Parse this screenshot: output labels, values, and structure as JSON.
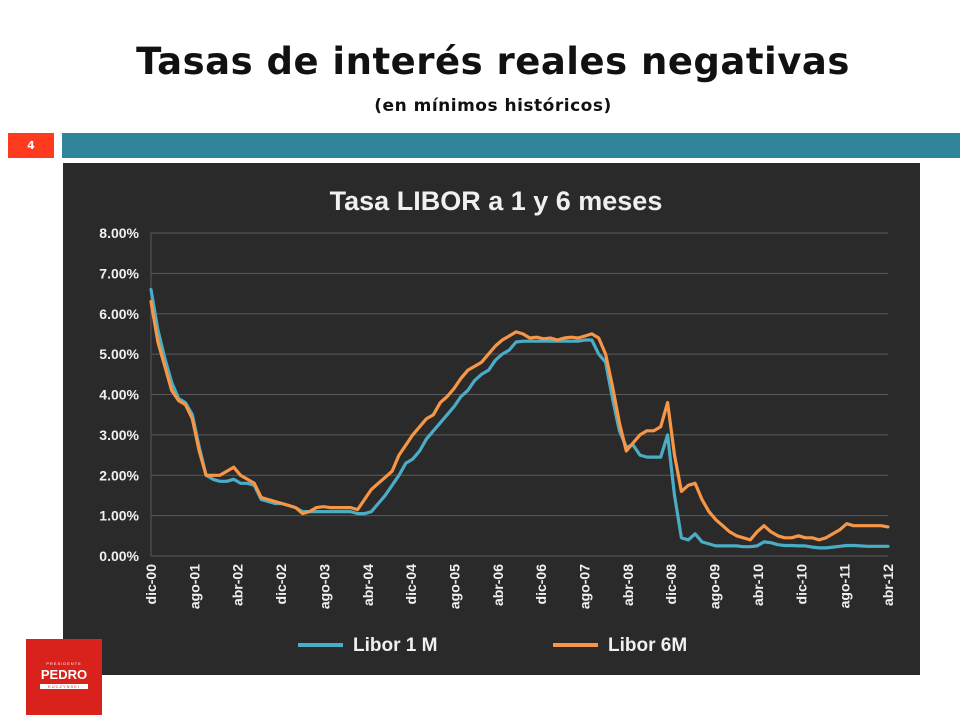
{
  "slide": {
    "title": "Tasas de interés reales negativas",
    "subtitle": "(en mínimos históricos)",
    "page_number": "4"
  },
  "logo": {
    "top_text": "PRESIDENTE",
    "name": "PEDRO",
    "bottom_text": "KUCZYNSKI"
  },
  "colors": {
    "accent_bar": "#31859b",
    "badge": "#ff3b1f",
    "libor_1m": "#4bacc6",
    "libor_6m": "#f79646",
    "plot_bg": "#2a2a2a",
    "gridline": "#5a5a5a"
  },
  "chart_data": {
    "type": "line",
    "title": "Tasa LIBOR a 1 y 6 meses",
    "xlabel": "",
    "ylabel": "",
    "ylim": [
      0,
      8
    ],
    "y_ticks": [
      "0.00%",
      "1.00%",
      "2.00%",
      "3.00%",
      "4.00%",
      "5.00%",
      "6.00%",
      "7.00%",
      "8.00%"
    ],
    "x_tick_labels": [
      "dic-00",
      "ago-01",
      "abr-02",
      "dic-02",
      "ago-03",
      "abr-04",
      "dic-04",
      "ago-05",
      "abr-06",
      "dic-06",
      "ago-07",
      "abr-08",
      "dic-08",
      "ago-09",
      "abr-10",
      "dic-10",
      "ago-11",
      "abr-12"
    ],
    "grid": true,
    "legend_position": "bottom",
    "series": [
      {
        "name": "Libor 1 M",
        "color": "#4bacc6",
        "values": [
          [
            0,
            6.6
          ],
          [
            1,
            5.6
          ],
          [
            2,
            4.9
          ],
          [
            3,
            4.3
          ],
          [
            4,
            3.9
          ],
          [
            5,
            3.8
          ],
          [
            6,
            3.5
          ],
          [
            7,
            2.7
          ],
          [
            8,
            2.0
          ],
          [
            9,
            1.9
          ],
          [
            10,
            1.85
          ],
          [
            11,
            1.85
          ],
          [
            12,
            1.9
          ],
          [
            13,
            1.8
          ],
          [
            14,
            1.8
          ],
          [
            15,
            1.75
          ],
          [
            16,
            1.4
          ],
          [
            17,
            1.35
          ],
          [
            18,
            1.3
          ],
          [
            19,
            1.3
          ],
          [
            20,
            1.25
          ],
          [
            21,
            1.2
          ],
          [
            22,
            1.1
          ],
          [
            23,
            1.1
          ],
          [
            24,
            1.1
          ],
          [
            25,
            1.1
          ],
          [
            26,
            1.1
          ],
          [
            27,
            1.1
          ],
          [
            28,
            1.1
          ],
          [
            29,
            1.1
          ],
          [
            30,
            1.05
          ],
          [
            31,
            1.05
          ],
          [
            32,
            1.1
          ],
          [
            33,
            1.3
          ],
          [
            34,
            1.5
          ],
          [
            35,
            1.75
          ],
          [
            36,
            2.0
          ],
          [
            37,
            2.3
          ],
          [
            38,
            2.4
          ],
          [
            39,
            2.6
          ],
          [
            40,
            2.9
          ],
          [
            41,
            3.1
          ],
          [
            42,
            3.3
          ],
          [
            43,
            3.5
          ],
          [
            44,
            3.7
          ],
          [
            45,
            3.95
          ],
          [
            46,
            4.1
          ],
          [
            47,
            4.35
          ],
          [
            48,
            4.5
          ],
          [
            49,
            4.6
          ],
          [
            50,
            4.85
          ],
          [
            51,
            5.0
          ],
          [
            52,
            5.1
          ],
          [
            53,
            5.3
          ],
          [
            54,
            5.32
          ],
          [
            55,
            5.32
          ],
          [
            56,
            5.32
          ],
          [
            57,
            5.32
          ],
          [
            58,
            5.32
          ],
          [
            59,
            5.32
          ],
          [
            60,
            5.32
          ],
          [
            61,
            5.32
          ],
          [
            62,
            5.32
          ],
          [
            63,
            5.35
          ],
          [
            64,
            5.35
          ],
          [
            65,
            5.0
          ],
          [
            66,
            4.8
          ],
          [
            67,
            3.9
          ],
          [
            68,
            3.1
          ],
          [
            69,
            2.7
          ],
          [
            70,
            2.75
          ],
          [
            71,
            2.5
          ],
          [
            72,
            2.45
          ],
          [
            73,
            2.45
          ],
          [
            74,
            2.45
          ],
          [
            75,
            3.0
          ],
          [
            76,
            1.5
          ],
          [
            77,
            0.45
          ],
          [
            78,
            0.4
          ],
          [
            79,
            0.55
          ],
          [
            80,
            0.35
          ],
          [
            81,
            0.3
          ],
          [
            82,
            0.25
          ],
          [
            83,
            0.25
          ],
          [
            84,
            0.25
          ],
          [
            85,
            0.25
          ],
          [
            86,
            0.23
          ],
          [
            87,
            0.23
          ],
          [
            88,
            0.25
          ],
          [
            89,
            0.35
          ],
          [
            90,
            0.33
          ],
          [
            91,
            0.28
          ],
          [
            92,
            0.26
          ],
          [
            93,
            0.26
          ],
          [
            94,
            0.25
          ],
          [
            95,
            0.25
          ],
          [
            96,
            0.22
          ],
          [
            97,
            0.2
          ],
          [
            98,
            0.2
          ],
          [
            99,
            0.22
          ],
          [
            100,
            0.24
          ],
          [
            101,
            0.26
          ],
          [
            102,
            0.26
          ],
          [
            103,
            0.25
          ],
          [
            104,
            0.24
          ],
          [
            105,
            0.24
          ],
          [
            106,
            0.24
          ],
          [
            107,
            0.24
          ]
        ]
      },
      {
        "name": "Libor 6M",
        "color": "#f79646",
        "values": [
          [
            0,
            6.3
          ],
          [
            1,
            5.3
          ],
          [
            2,
            4.7
          ],
          [
            3,
            4.1
          ],
          [
            4,
            3.85
          ],
          [
            5,
            3.75
          ],
          [
            6,
            3.4
          ],
          [
            7,
            2.6
          ],
          [
            8,
            2.0
          ],
          [
            9,
            2.0
          ],
          [
            10,
            2.0
          ],
          [
            11,
            2.1
          ],
          [
            12,
            2.2
          ],
          [
            13,
            2.0
          ],
          [
            14,
            1.9
          ],
          [
            15,
            1.8
          ],
          [
            16,
            1.45
          ],
          [
            17,
            1.4
          ],
          [
            18,
            1.35
          ],
          [
            19,
            1.3
          ],
          [
            20,
            1.25
          ],
          [
            21,
            1.2
          ],
          [
            22,
            1.05
          ],
          [
            23,
            1.1
          ],
          [
            24,
            1.2
          ],
          [
            25,
            1.22
          ],
          [
            26,
            1.2
          ],
          [
            27,
            1.2
          ],
          [
            28,
            1.2
          ],
          [
            29,
            1.2
          ],
          [
            30,
            1.15
          ],
          [
            31,
            1.4
          ],
          [
            32,
            1.65
          ],
          [
            33,
            1.8
          ],
          [
            34,
            1.95
          ],
          [
            35,
            2.1
          ],
          [
            36,
            2.5
          ],
          [
            37,
            2.75
          ],
          [
            38,
            3.0
          ],
          [
            39,
            3.2
          ],
          [
            40,
            3.4
          ],
          [
            41,
            3.5
          ],
          [
            42,
            3.8
          ],
          [
            43,
            3.95
          ],
          [
            44,
            4.15
          ],
          [
            45,
            4.4
          ],
          [
            46,
            4.6
          ],
          [
            47,
            4.7
          ],
          [
            48,
            4.8
          ],
          [
            49,
            5.0
          ],
          [
            50,
            5.2
          ],
          [
            51,
            5.35
          ],
          [
            52,
            5.45
          ],
          [
            53,
            5.55
          ],
          [
            54,
            5.5
          ],
          [
            55,
            5.4
          ],
          [
            56,
            5.42
          ],
          [
            57,
            5.38
          ],
          [
            58,
            5.4
          ],
          [
            59,
            5.35
          ],
          [
            60,
            5.4
          ],
          [
            61,
            5.42
          ],
          [
            62,
            5.4
          ],
          [
            63,
            5.45
          ],
          [
            64,
            5.5
          ],
          [
            65,
            5.4
          ],
          [
            66,
            5.0
          ],
          [
            67,
            4.2
          ],
          [
            68,
            3.3
          ],
          [
            69,
            2.6
          ],
          [
            70,
            2.8
          ],
          [
            71,
            3.0
          ],
          [
            72,
            3.1
          ],
          [
            73,
            3.1
          ],
          [
            74,
            3.2
          ],
          [
            75,
            3.8
          ],
          [
            76,
            2.5
          ],
          [
            77,
            1.6
          ],
          [
            78,
            1.75
          ],
          [
            79,
            1.8
          ],
          [
            80,
            1.4
          ],
          [
            81,
            1.1
          ],
          [
            82,
            0.9
          ],
          [
            83,
            0.75
          ],
          [
            84,
            0.6
          ],
          [
            85,
            0.5
          ],
          [
            86,
            0.45
          ],
          [
            87,
            0.4
          ],
          [
            88,
            0.6
          ],
          [
            89,
            0.75
          ],
          [
            90,
            0.6
          ],
          [
            91,
            0.5
          ],
          [
            92,
            0.45
          ],
          [
            93,
            0.45
          ],
          [
            94,
            0.5
          ],
          [
            95,
            0.45
          ],
          [
            96,
            0.45
          ],
          [
            97,
            0.4
          ],
          [
            98,
            0.45
          ],
          [
            99,
            0.55
          ],
          [
            100,
            0.65
          ],
          [
            101,
            0.8
          ],
          [
            102,
            0.75
          ],
          [
            103,
            0.75
          ],
          [
            104,
            0.75
          ],
          [
            105,
            0.75
          ],
          [
            106,
            0.75
          ],
          [
            107,
            0.72
          ]
        ]
      }
    ]
  }
}
